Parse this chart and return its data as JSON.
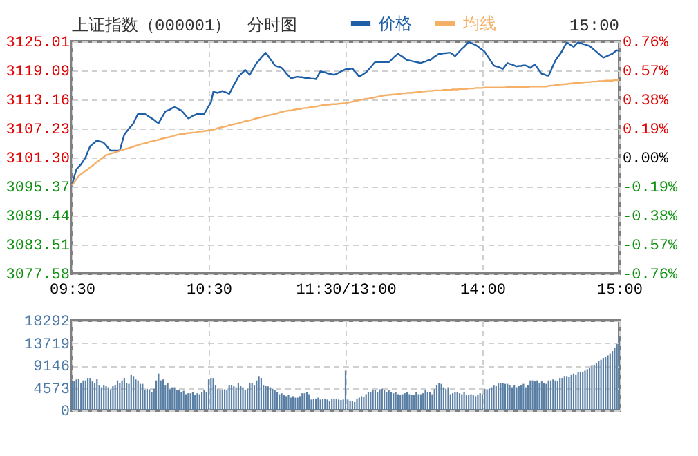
{
  "chart_data": [
    {
      "type": "line",
      "title": "上证指数（000001）",
      "subtitle": "分时图",
      "annotations": [
        "15:00"
      ],
      "categories": [
        "09:30",
        null,
        null,
        null,
        null,
        null,
        null,
        null,
        null,
        null,
        null,
        null,
        null,
        null,
        null,
        null,
        null,
        null,
        null,
        null,
        null,
        null,
        null,
        null,
        null,
        null,
        null,
        null,
        null,
        null,
        null,
        null,
        null,
        null,
        null,
        null,
        null,
        null,
        null,
        null,
        null,
        null,
        null,
        null,
        null,
        null,
        null,
        null,
        null,
        null,
        null,
        null,
        null,
        null,
        null,
        null,
        null,
        null,
        null,
        null,
        "10:30",
        null,
        null,
        null,
        null,
        null,
        null,
        null,
        null,
        null,
        null,
        null,
        null,
        null,
        null,
        null,
        null,
        null,
        null,
        null,
        null,
        null,
        null,
        null,
        null,
        null,
        null,
        null,
        null,
        null,
        null,
        null,
        null,
        null,
        null,
        null,
        null,
        null,
        null,
        null,
        null,
        null,
        null,
        null,
        null,
        null,
        null,
        null,
        null,
        null,
        null,
        null,
        null,
        null,
        null,
        null,
        null,
        null,
        null,
        null,
        "11:30/13:00",
        null,
        null,
        null,
        null,
        null,
        null,
        null,
        null,
        null,
        null,
        null,
        null,
        null,
        null,
        null,
        null,
        null,
        null,
        null,
        null,
        null,
        null,
        null,
        null,
        null,
        null,
        null,
        null,
        null,
        null,
        null,
        null,
        null,
        null,
        null,
        null,
        null,
        null,
        null,
        null,
        null,
        null,
        null,
        null,
        null,
        null,
        null,
        null,
        null,
        null,
        null,
        null,
        null,
        null,
        null,
        null,
        null,
        null,
        null,
        "14:00",
        null,
        null,
        null,
        null,
        null,
        null,
        null,
        null,
        null,
        null,
        null,
        null,
        null,
        null,
        null,
        null,
        null,
        null,
        null,
        null,
        null,
        null,
        null,
        null,
        null,
        null,
        null,
        null,
        null,
        null,
        null,
        null,
        null,
        null,
        null,
        null,
        null,
        null,
        null,
        null,
        null,
        null,
        null,
        null,
        null,
        null,
        null,
        null,
        null,
        null,
        null,
        null,
        null,
        null,
        null,
        null,
        null,
        null,
        null,
        "15:00"
      ],
      "ylim": [
        3077.58,
        3125.01
      ],
      "yticks": [
        3077.58,
        3083.51,
        3089.44,
        3095.37,
        {
          "value": 3101.3,
          "label": "3101.30"
        },
        3107.23,
        3113.16,
        3119.09,
        3125.01
      ],
      "y2lim": [
        -0.76,
        0.76
      ],
      "y2ticks": [
        {
          "value": -0.76,
          "label": "-0.76%"
        },
        {
          "value": -0.57,
          "label": "-0.57%"
        },
        {
          "value": -0.38,
          "label": "-0.38%"
        },
        {
          "value": -0.19,
          "label": "-0.19%"
        },
        {
          "value": 0,
          "label": "0.00%"
        },
        {
          "value": 0.19,
          "label": "0.19%"
        },
        {
          "value": 0.38,
          "label": "0.38%"
        },
        {
          "value": 0.57,
          "label": "0.57%"
        },
        {
          "value": 0.76,
          "label": "0.76%"
        }
      ],
      "grid": true,
      "legend": "top",
      "marker": "none",
      "line_style": "solid",
      "series": [
        {
          "name": "价格",
          "color": "#1f5fa8",
          "values": [
            3095.6,
            3097.3,
            3098.9,
            3099.4,
            3099.9,
            3100.6,
            3101.3,
            3102.5,
            3103.6,
            3104.0,
            3104.4,
            3104.8,
            3104.6,
            3104.5,
            3104.3,
            3103.8,
            3103.2,
            3102.7,
            3102.7,
            3102.7,
            3102.7,
            3102.7,
            3104.4,
            3106.0,
            3106.6,
            3107.2,
            3107.7,
            3108.3,
            3109.3,
            3110.2,
            3110.2,
            3110.2,
            3110.2,
            3109.9,
            3109.6,
            3109.3,
            3109.0,
            3108.6,
            3108.3,
            3109.1,
            3109.9,
            3110.7,
            3110.9,
            3111.1,
            3111.4,
            3111.6,
            3111.4,
            3111.1,
            3110.9,
            3110.4,
            3109.8,
            3109.3,
            3109.5,
            3109.8,
            3110.0,
            3110.2,
            3110.2,
            3110.2,
            3110.2,
            3111.0,
            3111.8,
            3112.6,
            3114.7,
            3114.6,
            3114.5,
            3114.7,
            3114.9,
            3114.7,
            3114.5,
            3114.3,
            3115.2,
            3116.1,
            3116.9,
            3117.8,
            3118.3,
            3118.7,
            3119.2,
            3118.7,
            3118.2,
            3119.0,
            3119.8,
            3120.6,
            3121.1,
            3121.7,
            3122.2,
            3122.7,
            3122.1,
            3121.4,
            3120.8,
            3120.1,
            3119.9,
            3119.8,
            3119.6,
            3119.1,
            3118.5,
            3118.0,
            3117.5,
            3117.6,
            3117.7,
            3117.8,
            3117.7,
            3117.7,
            3117.6,
            3117.5,
            3117.5,
            3117.4,
            3117.4,
            3117.3,
            3118.1,
            3118.9,
            3118.8,
            3118.7,
            3118.5,
            3118.4,
            3118.3,
            3118.2,
            3118.4,
            3118.6,
            3118.9,
            3119.1,
            3119.3,
            3119.4,
            3119.4,
            3119.5,
            3118.9,
            3118.4,
            3117.8,
            3118.1,
            3118.4,
            3118.7,
            3119.2,
            3119.7,
            3120.3,
            3120.8,
            3120.8,
            3120.8,
            3120.8,
            3120.8,
            3120.8,
            3120.8,
            3121.2,
            3121.7,
            3122.1,
            3122.5,
            3122.2,
            3121.9,
            3121.5,
            3121.2,
            3121.1,
            3121.0,
            3120.9,
            3120.8,
            3120.7,
            3120.6,
            3120.8,
            3120.9,
            3121.1,
            3121.2,
            3121.5,
            3121.9,
            3122.2,
            3122.5,
            3122.5,
            3122.6,
            3122.6,
            3122.7,
            3122.7,
            3122.4,
            3122.0,
            3122.5,
            3123.0,
            3123.5,
            3123.9,
            3124.4,
            3124.9,
            3124.7,
            3124.5,
            3124.3,
            3124.0,
            3123.6,
            3123.3,
            3122.9,
            3122.2,
            3121.5,
            3120.8,
            3120.1,
            3119.9,
            3119.8,
            3119.6,
            3119.4,
            3120.0,
            3120.6,
            3120.4,
            3120.3,
            3120.1,
            3119.9,
            3120.0,
            3120.0,
            3120.1,
            3120.1,
            3119.9,
            3119.6,
            3120.0,
            3120.3,
            3119.7,
            3119.0,
            3118.4,
            3118.3,
            3118.1,
            3118.0,
            3119.0,
            3120.1,
            3121.1,
            3121.8,
            3122.4,
            3123.1,
            3124.0,
            3124.8,
            3124.5,
            3124.2,
            3123.9,
            3124.4,
            3124.8,
            3124.7,
            3124.5,
            3124.4,
            3124.2,
            3124.1,
            3123.7,
            3123.3,
            3122.9,
            3122.5,
            3122.1,
            3121.7,
            3121.9,
            3122.1,
            3122.3,
            3122.5,
            3122.9,
            3123.2,
            3123.1
          ]
        },
        {
          "name": "均线",
          "color": "#f5b068",
          "values": [
            3095.6,
            3096.2,
            3096.9,
            3097.5,
            3097.9,
            3098.2,
            3098.6,
            3098.9,
            3099.3,
            3099.6,
            3100.0,
            3100.4,
            3100.7,
            3101.1,
            3101.4,
            3101.8,
            3101.9,
            3102.1,
            3102.2,
            3102.4,
            3102.5,
            3102.7,
            3102.8,
            3103.0,
            3103.1,
            3103.2,
            3103.4,
            3103.5,
            3103.7,
            3103.8,
            3104.0,
            3104.1,
            3104.2,
            3104.3,
            3104.5,
            3104.6,
            3104.7,
            3104.8,
            3104.9,
            3105.1,
            3105.2,
            3105.3,
            3105.4,
            3105.5,
            3105.6,
            3105.8,
            3105.9,
            3106.0,
            3106.1,
            3106.1,
            3106.2,
            3106.3,
            3106.3,
            3106.4,
            3106.4,
            3106.5,
            3106.6,
            3106.6,
            3106.7,
            3106.8,
            3106.8,
            3106.9,
            3107.0,
            3107.1,
            3107.3,
            3107.4,
            3107.5,
            3107.6,
            3107.7,
            3107.9,
            3108.0,
            3108.1,
            3108.2,
            3108.3,
            3108.4,
            3108.6,
            3108.7,
            3108.8,
            3108.9,
            3109.0,
            3109.2,
            3109.3,
            3109.4,
            3109.5,
            3109.6,
            3109.8,
            3109.9,
            3110.0,
            3110.1,
            3110.2,
            3110.3,
            3110.5,
            3110.6,
            3110.7,
            3110.8,
            3110.9,
            3110.9,
            3111.0,
            3111.1,
            3111.2,
            3111.2,
            3111.3,
            3111.4,
            3111.4,
            3111.5,
            3111.6,
            3111.7,
            3111.7,
            3111.8,
            3111.9,
            3112.0,
            3112.0,
            3112.1,
            3112.1,
            3112.2,
            3112.2,
            3112.2,
            3112.3,
            3112.3,
            3112.4,
            3112.4,
            3112.5,
            3112.6,
            3112.7,
            3112.8,
            3112.9,
            3113.0,
            3113.1,
            3113.2,
            3113.3,
            3113.3,
            3113.4,
            3113.5,
            3113.6,
            3113.7,
            3113.8,
            3113.9,
            3114.0,
            3114.0,
            3114.1,
            3114.1,
            3114.2,
            3114.2,
            3114.3,
            3114.3,
            3114.4,
            3114.4,
            3114.5,
            3114.5,
            3114.5,
            3114.6,
            3114.6,
            3114.7,
            3114.7,
            3114.8,
            3114.8,
            3114.9,
            3114.9,
            3114.9,
            3115.0,
            3115.0,
            3115.0,
            3115.0,
            3115.1,
            3115.1,
            3115.1,
            3115.1,
            3115.2,
            3115.2,
            3115.2,
            3115.3,
            3115.3,
            3115.3,
            3115.3,
            3115.4,
            3115.4,
            3115.4,
            3115.5,
            3115.5,
            3115.5,
            3115.5,
            3115.6,
            3115.6,
            3115.6,
            3115.6,
            3115.6,
            3115.6,
            3115.6,
            3115.6,
            3115.6,
            3115.6,
            3115.7,
            3115.7,
            3115.7,
            3115.7,
            3115.7,
            3115.7,
            3115.7,
            3115.7,
            3115.7,
            3115.7,
            3115.8,
            3115.8,
            3115.8,
            3115.8,
            3115.8,
            3115.8,
            3115.8,
            3115.8,
            3115.9,
            3116.0,
            3116.0,
            3116.1,
            3116.1,
            3116.2,
            3116.2,
            3116.3,
            3116.3,
            3116.4,
            3116.4,
            3116.5,
            3116.5,
            3116.5,
            3116.6,
            3116.6,
            3116.7,
            3116.7,
            3116.7,
            3116.8,
            3116.8,
            3116.8,
            3116.9,
            3116.9,
            3116.9,
            3117.0,
            3117.0,
            3117.0,
            3117.0,
            3117.1,
            3117.1,
            3117.1
          ]
        }
      ]
    },
    {
      "type": "bar",
      "tick_labels": "y",
      "grid": true,
      "categories": [
        null,
        null,
        null,
        null,
        null,
        null,
        null,
        null,
        null,
        null,
        null,
        null,
        null,
        null,
        null,
        null,
        null,
        null,
        null,
        null,
        null,
        null,
        null,
        null,
        null,
        null,
        null,
        null,
        null,
        null,
        null,
        null,
        null,
        null,
        null,
        null,
        null,
        null,
        null,
        null,
        null,
        null,
        null,
        null,
        null,
        null,
        null,
        null,
        null,
        null,
        null,
        null,
        null,
        null,
        null,
        null,
        null,
        null,
        null,
        null,
        null,
        null,
        null,
        null,
        null,
        null,
        null,
        null,
        null,
        null,
        null,
        null,
        null,
        null,
        null,
        null,
        null,
        null,
        null,
        null,
        null,
        null,
        null,
        null,
        null,
        null,
        null,
        null,
        null,
        null,
        null,
        null,
        null,
        null,
        null,
        null,
        null,
        null,
        null,
        null,
        null,
        null,
        null,
        null,
        null,
        null,
        null,
        null,
        null,
        null,
        null,
        null,
        null,
        null,
        null,
        null,
        null,
        null,
        null,
        null,
        null,
        null,
        null,
        null,
        null,
        null,
        null,
        null,
        null,
        null,
        null,
        null,
        null,
        null,
        null,
        null,
        null,
        null,
        null,
        null,
        null,
        null,
        null,
        null,
        null,
        null,
        null,
        null,
        null,
        null,
        null,
        null,
        null,
        null,
        null,
        null,
        null,
        null,
        null,
        null,
        null,
        null,
        null,
        null,
        null,
        null,
        null,
        null,
        null,
        null,
        null,
        null,
        null,
        null,
        null,
        null,
        null,
        null,
        null,
        null,
        null,
        null,
        null,
        null,
        null,
        null,
        null,
        null,
        null,
        null,
        null,
        null,
        null,
        null,
        null,
        null,
        null,
        null,
        null,
        null,
        null,
        null,
        null,
        null,
        null,
        null,
        null,
        null,
        null,
        null,
        null,
        null,
        null,
        null,
        null,
        null,
        null,
        null,
        null,
        null,
        null,
        null,
        null,
        null,
        null,
        null,
        null,
        null,
        null,
        null,
        null,
        null,
        null,
        null,
        null,
        null,
        null,
        null,
        null,
        null,
        null
      ],
      "ylim": [
        0,
        18292
      ],
      "yticks": [
        0,
        4573,
        9146,
        13719,
        18292
      ],
      "color": "#5a7fa5",
      "values": [
        6100,
        5900,
        6300,
        6400,
        5600,
        6100,
        6100,
        6600,
        6600,
        5900,
        5600,
        6400,
        5200,
        4700,
        5200,
        5000,
        4700,
        4300,
        5000,
        5200,
        6100,
        5600,
        6100,
        6600,
        5600,
        5400,
        7200,
        7000,
        6300,
        6100,
        5400,
        5400,
        4100,
        4400,
        4300,
        3800,
        4400,
        6100,
        7500,
        6100,
        6300,
        5200,
        5600,
        4300,
        4700,
        4700,
        4100,
        4100,
        3800,
        4000,
        3300,
        3500,
        3500,
        3800,
        3100,
        3500,
        3300,
        3800,
        4100,
        3800,
        6300,
        6600,
        6600,
        5200,
        4400,
        4100,
        4100,
        4300,
        4100,
        5200,
        5200,
        4900,
        4700,
        5600,
        5000,
        4700,
        4100,
        4400,
        5600,
        5600,
        5200,
        6100,
        7000,
        6600,
        5200,
        5000,
        4900,
        4700,
        4400,
        4100,
        3800,
        3300,
        3500,
        3100,
        2900,
        3100,
        2600,
        2900,
        2600,
        2600,
        2900,
        3500,
        3500,
        3800,
        3300,
        2200,
        2400,
        2400,
        2600,
        2200,
        2400,
        2400,
        2200,
        1900,
        2400,
        2400,
        2400,
        2200,
        2100,
        2200,
        8100,
        2200,
        1900,
        1900,
        1700,
        2400,
        2600,
        2900,
        2800,
        3300,
        3800,
        3800,
        4100,
        4100,
        3800,
        4300,
        4400,
        4100,
        3800,
        4100,
        3800,
        3500,
        3800,
        3300,
        3100,
        3300,
        3500,
        3800,
        3300,
        3100,
        3100,
        3800,
        3300,
        3300,
        3500,
        4100,
        3700,
        3800,
        3300,
        4300,
        5200,
        5600,
        5400,
        4700,
        4300,
        4700,
        3300,
        3500,
        3800,
        3800,
        3500,
        3300,
        3800,
        3100,
        3100,
        3300,
        3100,
        2900,
        3100,
        3500,
        3300,
        4400,
        4300,
        4400,
        4700,
        5200,
        5000,
        5600,
        5600,
        5600,
        5400,
        5400,
        5200,
        4700,
        5200,
        4700,
        5000,
        5200,
        5400,
        4700,
        5200,
        6100,
        6100,
        5900,
        6100,
        5600,
        5900,
        5600,
        5400,
        6100,
        6100,
        6300,
        6100,
        5900,
        6600,
        6600,
        7000,
        7000,
        6800,
        7200,
        7500,
        7200,
        7800,
        7900,
        7900,
        8100,
        8400,
        8700,
        9100,
        9300,
        9600,
        10000,
        10300,
        10700,
        10900,
        11200,
        11600,
        12100,
        12700,
        13500,
        14900
      ]
    }
  ]
}
